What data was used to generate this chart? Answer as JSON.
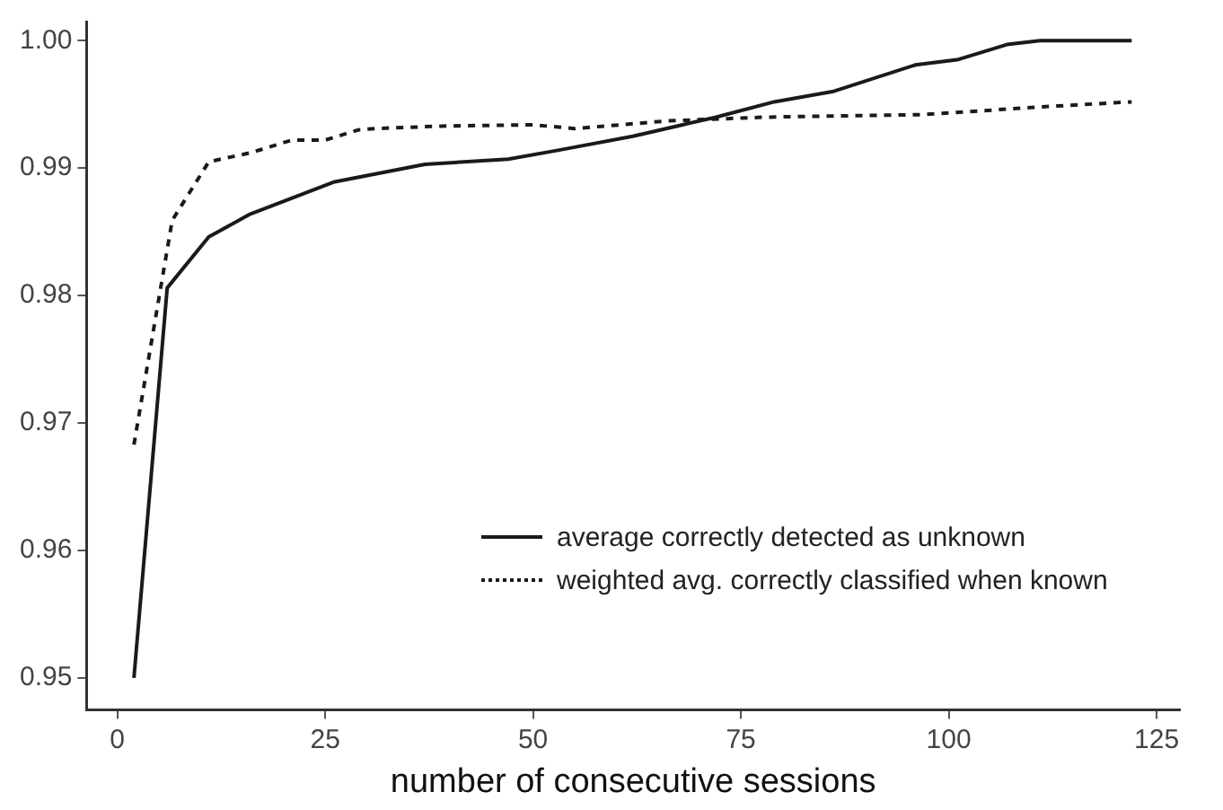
{
  "chart_data": {
    "type": "line",
    "xlabel": "number of consecutive sessions",
    "xlim": [
      -3.7,
      127.8
    ],
    "xticks": [
      0,
      25,
      50,
      75,
      100,
      125
    ],
    "ylim": [
      0.9475,
      1.0015
    ],
    "yticks": [
      {
        "value": 0.95,
        "label": "0.95"
      },
      {
        "value": 0.96,
        "label": "0.96"
      },
      {
        "value": 0.97,
        "label": "0.97"
      },
      {
        "value": 0.98,
        "label": "0.98"
      },
      {
        "value": 0.99,
        "label": "0.99"
      },
      {
        "value": 1.0,
        "label": "1.00"
      }
    ],
    "grid": false,
    "legend": "bottom right",
    "marker": "none",
    "series": [
      {
        "name": "average correctly detected as unknown",
        "color": "#1a1a1a",
        "line_style": "solid",
        "x": [
          2,
          6,
          11,
          16,
          26,
          37,
          47,
          53,
          62,
          72,
          79,
          86,
          96,
          101,
          107,
          111,
          122
        ],
        "values": [
          0.95,
          0.9806,
          0.9846,
          0.9864,
          0.9889,
          0.9903,
          0.9907,
          0.9914,
          0.9925,
          0.994,
          0.9952,
          0.996,
          0.9981,
          0.9985,
          0.9997,
          1.0,
          1.0
        ]
      },
      {
        "name": "weighted avg. correctly classified when known",
        "color": "#1a1a1a",
        "line_style": "dotted",
        "x": [
          2,
          6.6,
          11,
          16,
          21,
          25,
          29,
          31,
          39,
          50,
          55,
          66,
          78,
          87,
          97,
          104,
          111,
          122
        ],
        "values": [
          0.9683,
          0.9859,
          0.9905,
          0.9912,
          0.9922,
          0.9922,
          0.993,
          0.9931,
          0.9933,
          0.9934,
          0.9931,
          0.9937,
          0.994,
          0.9941,
          0.9942,
          0.9945,
          0.9948,
          0.9952
        ]
      }
    ]
  }
}
